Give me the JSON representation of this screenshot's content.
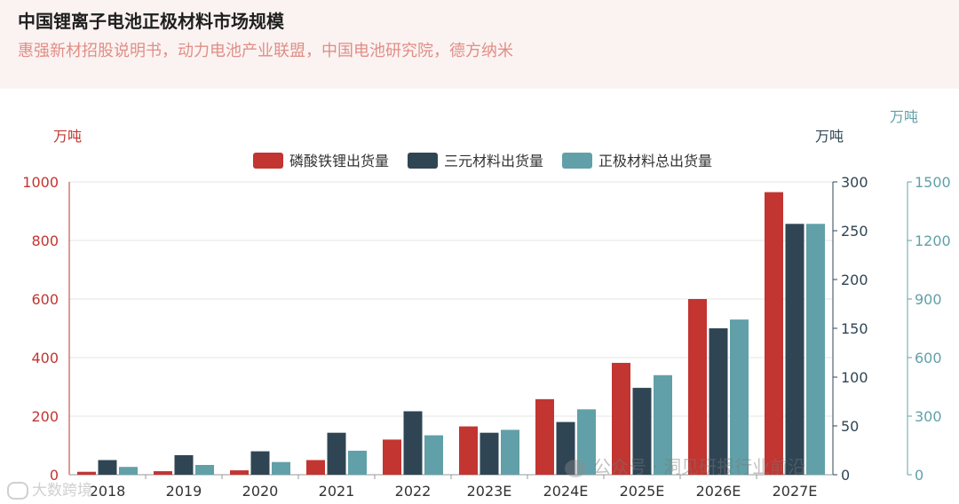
{
  "header": {
    "title": "中国锂离子电池正极材料市场规模",
    "subtitle": "惠强新材招股说明书，动力电池产业联盟，中国电池研究院，德方纳米"
  },
  "watermarks": {
    "wechat": "公众号 · 洞见研报行业前沿",
    "bottom_left": "大数跨境"
  },
  "colors": {
    "lfp": "#c23531",
    "ternary": "#2f4554",
    "total": "#61a0a8",
    "left_axis": "#c23531",
    "mid_axis": "#2f4554",
    "right_axis": "#61a0a8"
  },
  "chart_data": {
    "type": "bar",
    "categories": [
      "2018",
      "2019",
      "2020",
      "2021",
      "2022",
      "2023E",
      "2024E",
      "2025E",
      "2026E",
      "2027E"
    ],
    "series": [
      {
        "name": "磷酸铁锂出货量",
        "axis": "left",
        "values": [
          10,
          12,
          15,
          50,
          120,
          165,
          258,
          382,
          600,
          965
        ]
      },
      {
        "name": "三元材料出货量",
        "axis": "middle",
        "values": [
          15,
          20,
          24,
          43,
          65,
          43,
          54,
          89,
          150,
          257
        ]
      },
      {
        "name": "正极材料总出货量",
        "axis": "right",
        "values": [
          40,
          50,
          65,
          123,
          202,
          230,
          335,
          510,
          795,
          1285
        ]
      }
    ],
    "axes": {
      "left": {
        "unit": "万吨",
        "ylim": [
          0,
          1000
        ],
        "ticks": [
          "0",
          "200",
          "400",
          "600",
          "800",
          "1000"
        ]
      },
      "middle": {
        "unit": "万吨",
        "ylim": [
          0,
          300
        ],
        "ticks": [
          "0",
          "50",
          "100",
          "150",
          "200",
          "250",
          "300"
        ]
      },
      "right": {
        "unit": "万吨",
        "ylim": [
          0,
          1500
        ],
        "ticks": [
          "0",
          "300",
          "600",
          "900",
          "1200",
          "1500"
        ]
      }
    },
    "legend_position": "top-center",
    "grid": true
  }
}
